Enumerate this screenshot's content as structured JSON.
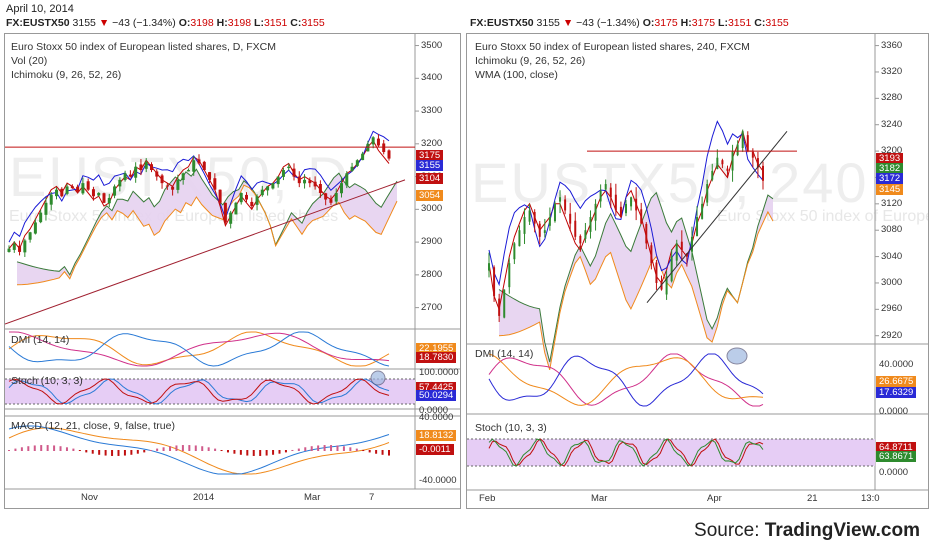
{
  "date": "April 10, 2014",
  "source": {
    "prefix": "Source:",
    "name": "TradingView.com"
  },
  "colors": {
    "up": "#2e8b2e",
    "down": "#c01010",
    "tenkan": "#1a1ad6",
    "kijun": "#c00000",
    "cloud": "#e6d2f0",
    "orange": "#f08a1c",
    "stochband": "#e6cdf5"
  },
  "chart_data": [
    {
      "type": "candlestick",
      "ticker_line": {
        "symbol": "FX:EUSTX50",
        "last": "3155",
        "change": "−43 (−1.34%)",
        "o_label": "O:",
        "o": "3198",
        "h_label": "H:",
        "h": "3198",
        "l_label": "L:",
        "l": "3151",
        "c_label": "C:",
        "c": "3155"
      },
      "title": "Euro Stoxx 50 index of European listed shares, D, FXCM",
      "indicators": [
        "Vol (20)",
        "Ichimoku (9, 26, 52, 26)"
      ],
      "watermark": "EUSTX50, D",
      "watermark_sub": "Euro Stoxx 50 index of European listed shares",
      "x_ticks": [
        "Nov",
        "2014",
        "Mar",
        "7"
      ],
      "y_ticks": [
        "3500",
        "3400",
        "3300",
        "3200",
        "3100",
        "3000",
        "2900",
        "2800",
        "2700"
      ],
      "ylim": [
        2650,
        3520
      ],
      "price_badges": [
        {
          "label": "3175",
          "color": "#c01010"
        },
        {
          "label": "3155",
          "color": "#2a2ad6"
        },
        {
          "label": "3104",
          "color": "#c01010"
        },
        {
          "label": "3054",
          "color": "#f08a1c"
        }
      ],
      "close_series": [
        2880,
        2895,
        2870,
        2905,
        2930,
        2960,
        2990,
        3020,
        3045,
        3060,
        3040,
        3070,
        3065,
        3055,
        3080,
        3060,
        3040,
        3050,
        3020,
        3035,
        3070,
        3090,
        3110,
        3100,
        3130,
        3120,
        3145,
        3120,
        3100,
        3080,
        3070,
        3060,
        3090,
        3110,
        3120,
        3150,
        3140,
        3120,
        3090,
        3060,
        3020,
        2960,
        2990,
        3020,
        3050,
        3030,
        3010,
        3040,
        3060,
        3070,
        3080,
        3100,
        3120,
        3130,
        3100,
        3080,
        3090,
        3080,
        3070,
        3050,
        3030,
        3020,
        3050,
        3080,
        3110,
        3130,
        3150,
        3170,
        3200,
        3220,
        3195,
        3175,
        3155
      ],
      "sub_indicators": [
        {
          "label": "DMI (14, 14)",
          "badges": [
            {
              "label": "22.1955",
              "color": "#f08a1c"
            },
            {
              "label": "18.7830",
              "color": "#c01010"
            }
          ]
        },
        {
          "label": "Stoch (10, 3, 3)",
          "y_ticks": [
            "100.0000",
            "0.0000"
          ],
          "badges": [
            {
              "label": "57.4425",
              "color": "#c01010"
            },
            {
              "label": "50.0294",
              "color": "#2a2ad6"
            }
          ]
        },
        {
          "label": "MACD (12, 21, close, 9, false, true)",
          "y_ticks": [
            "40.0000",
            "-40.0000"
          ],
          "badges": [
            {
              "label": "18.8132",
              "color": "#f08a1c"
            },
            {
              "label": "-0.0011",
              "color": "#c01010"
            }
          ]
        }
      ]
    },
    {
      "type": "candlestick",
      "ticker_line": {
        "symbol": "FX:EUSTX50",
        "last": "3155",
        "change": "−43 (−1.34%)",
        "o_label": "O:",
        "o": "3175",
        "h_label": "H:",
        "h": "3175",
        "l_label": "L:",
        "l": "3151",
        "c_label": "C:",
        "c": "3155"
      },
      "title": "Euro Stoxx 50 index of European listed shares, 240, FXCM",
      "indicators": [
        "Ichimoku (9, 26, 52, 26)",
        "WMA (100, close)"
      ],
      "watermark": "EUSTX50, 240",
      "watermark_sub": "Euro Stoxx 50 index of European listed shares",
      "x_ticks": [
        "Feb",
        "Mar",
        "Apr",
        "21",
        "13:0"
      ],
      "y_ticks": [
        "3360",
        "3320",
        "3280",
        "3240",
        "3200",
        "3160",
        "3120",
        "3080",
        "3040",
        "3000",
        "2960",
        "2920"
      ],
      "ylim": [
        2915,
        3370
      ],
      "price_badges": [
        {
          "label": "3193",
          "color": "#c01010"
        },
        {
          "label": "3182",
          "color": "#2e8b2e"
        },
        {
          "label": "3172",
          "color": "#2a2ad6"
        },
        {
          "label": "3145",
          "color": "#f08a1c"
        }
      ],
      "close_series": [
        3030,
        2980,
        2950,
        2990,
        3030,
        3060,
        3080,
        3100,
        3110,
        3090,
        3070,
        3080,
        3100,
        3120,
        3130,
        3110,
        3090,
        3070,
        3060,
        3080,
        3100,
        3120,
        3140,
        3150,
        3130,
        3110,
        3100,
        3120,
        3130,
        3110,
        3090,
        3060,
        3030,
        3000,
        2990,
        3010,
        3040,
        3060,
        3050,
        3040,
        3070,
        3100,
        3120,
        3150,
        3170,
        3190,
        3180,
        3170,
        3200,
        3210,
        3230,
        3200,
        3190,
        3175,
        3155
      ],
      "sub_indicators": [
        {
          "label": "DMI (14, 14)",
          "y_ticks": [
            "40.0000",
            "0.0000"
          ],
          "badges": [
            {
              "label": "26.6675",
              "color": "#f08a1c"
            },
            {
              "label": "17.6329",
              "color": "#2a2ad6"
            }
          ]
        },
        {
          "label": "Stoch (10, 3, 3)",
          "y_ticks": [
            "0.0000"
          ],
          "badges": [
            {
              "label": "64.8711",
              "color": "#c01010"
            },
            {
              "label": "63.8671",
              "color": "#2e8b2e"
            }
          ]
        }
      ]
    }
  ]
}
